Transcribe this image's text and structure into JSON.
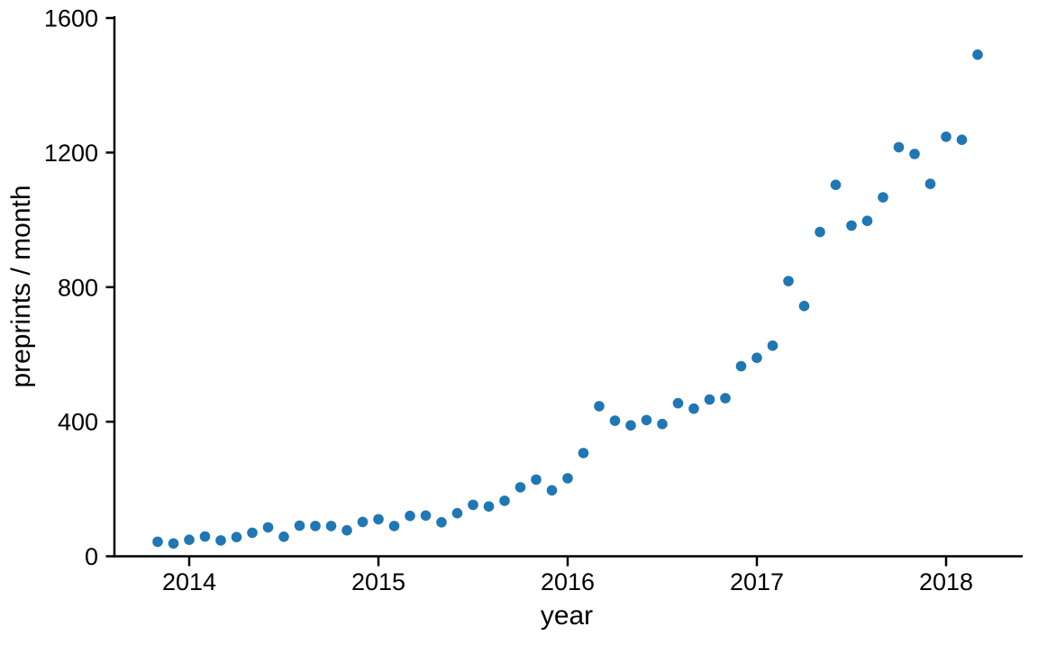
{
  "chart_data": {
    "type": "scatter",
    "title": "",
    "xlabel": "year",
    "ylabel": "preprints / month",
    "xlim": [
      2013.6,
      2018.4
    ],
    "ylim": [
      0,
      1600
    ],
    "xticks": [
      2014,
      2015,
      2016,
      2017,
      2018
    ],
    "yticks": [
      0,
      400,
      800,
      1200,
      1600
    ],
    "grid": false,
    "legend_position": "none",
    "marker_color": "#1f77b4",
    "axis_color": "#000000",
    "points": [
      {
        "month": "2013-11",
        "value": 43
      },
      {
        "month": "2013-12",
        "value": 38
      },
      {
        "month": "2014-01",
        "value": 49
      },
      {
        "month": "2014-02",
        "value": 59
      },
      {
        "month": "2014-03",
        "value": 47
      },
      {
        "month": "2014-04",
        "value": 57
      },
      {
        "month": "2014-05",
        "value": 70
      },
      {
        "month": "2014-06",
        "value": 86
      },
      {
        "month": "2014-07",
        "value": 58
      },
      {
        "month": "2014-08",
        "value": 91
      },
      {
        "month": "2014-09",
        "value": 90
      },
      {
        "month": "2014-10",
        "value": 90
      },
      {
        "month": "2014-11",
        "value": 77
      },
      {
        "month": "2014-12",
        "value": 102
      },
      {
        "month": "2015-01",
        "value": 110
      },
      {
        "month": "2015-02",
        "value": 90
      },
      {
        "month": "2015-03",
        "value": 120
      },
      {
        "month": "2015-04",
        "value": 121
      },
      {
        "month": "2015-05",
        "value": 101
      },
      {
        "month": "2015-06",
        "value": 128
      },
      {
        "month": "2015-07",
        "value": 153
      },
      {
        "month": "2015-08",
        "value": 148
      },
      {
        "month": "2015-09",
        "value": 165
      },
      {
        "month": "2015-10",
        "value": 205
      },
      {
        "month": "2015-11",
        "value": 228
      },
      {
        "month": "2015-12",
        "value": 196
      },
      {
        "month": "2016-01",
        "value": 232
      },
      {
        "month": "2016-02",
        "value": 307
      },
      {
        "month": "2016-03",
        "value": 446
      },
      {
        "month": "2016-04",
        "value": 403
      },
      {
        "month": "2016-05",
        "value": 389
      },
      {
        "month": "2016-06",
        "value": 405
      },
      {
        "month": "2016-07",
        "value": 393
      },
      {
        "month": "2016-08",
        "value": 455
      },
      {
        "month": "2016-09",
        "value": 439
      },
      {
        "month": "2016-10",
        "value": 466
      },
      {
        "month": "2016-11",
        "value": 470
      },
      {
        "month": "2016-12",
        "value": 565
      },
      {
        "month": "2017-01",
        "value": 590
      },
      {
        "month": "2017-02",
        "value": 626
      },
      {
        "month": "2017-03",
        "value": 818
      },
      {
        "month": "2017-04",
        "value": 744
      },
      {
        "month": "2017-05",
        "value": 964
      },
      {
        "month": "2017-06",
        "value": 1104
      },
      {
        "month": "2017-07",
        "value": 983
      },
      {
        "month": "2017-08",
        "value": 997
      },
      {
        "month": "2017-09",
        "value": 1067
      },
      {
        "month": "2017-10",
        "value": 1216
      },
      {
        "month": "2017-11",
        "value": 1196
      },
      {
        "month": "2017-12",
        "value": 1107
      },
      {
        "month": "2018-01",
        "value": 1247
      },
      {
        "month": "2018-02",
        "value": 1238
      },
      {
        "month": "2018-03",
        "value": 1491
      }
    ]
  }
}
